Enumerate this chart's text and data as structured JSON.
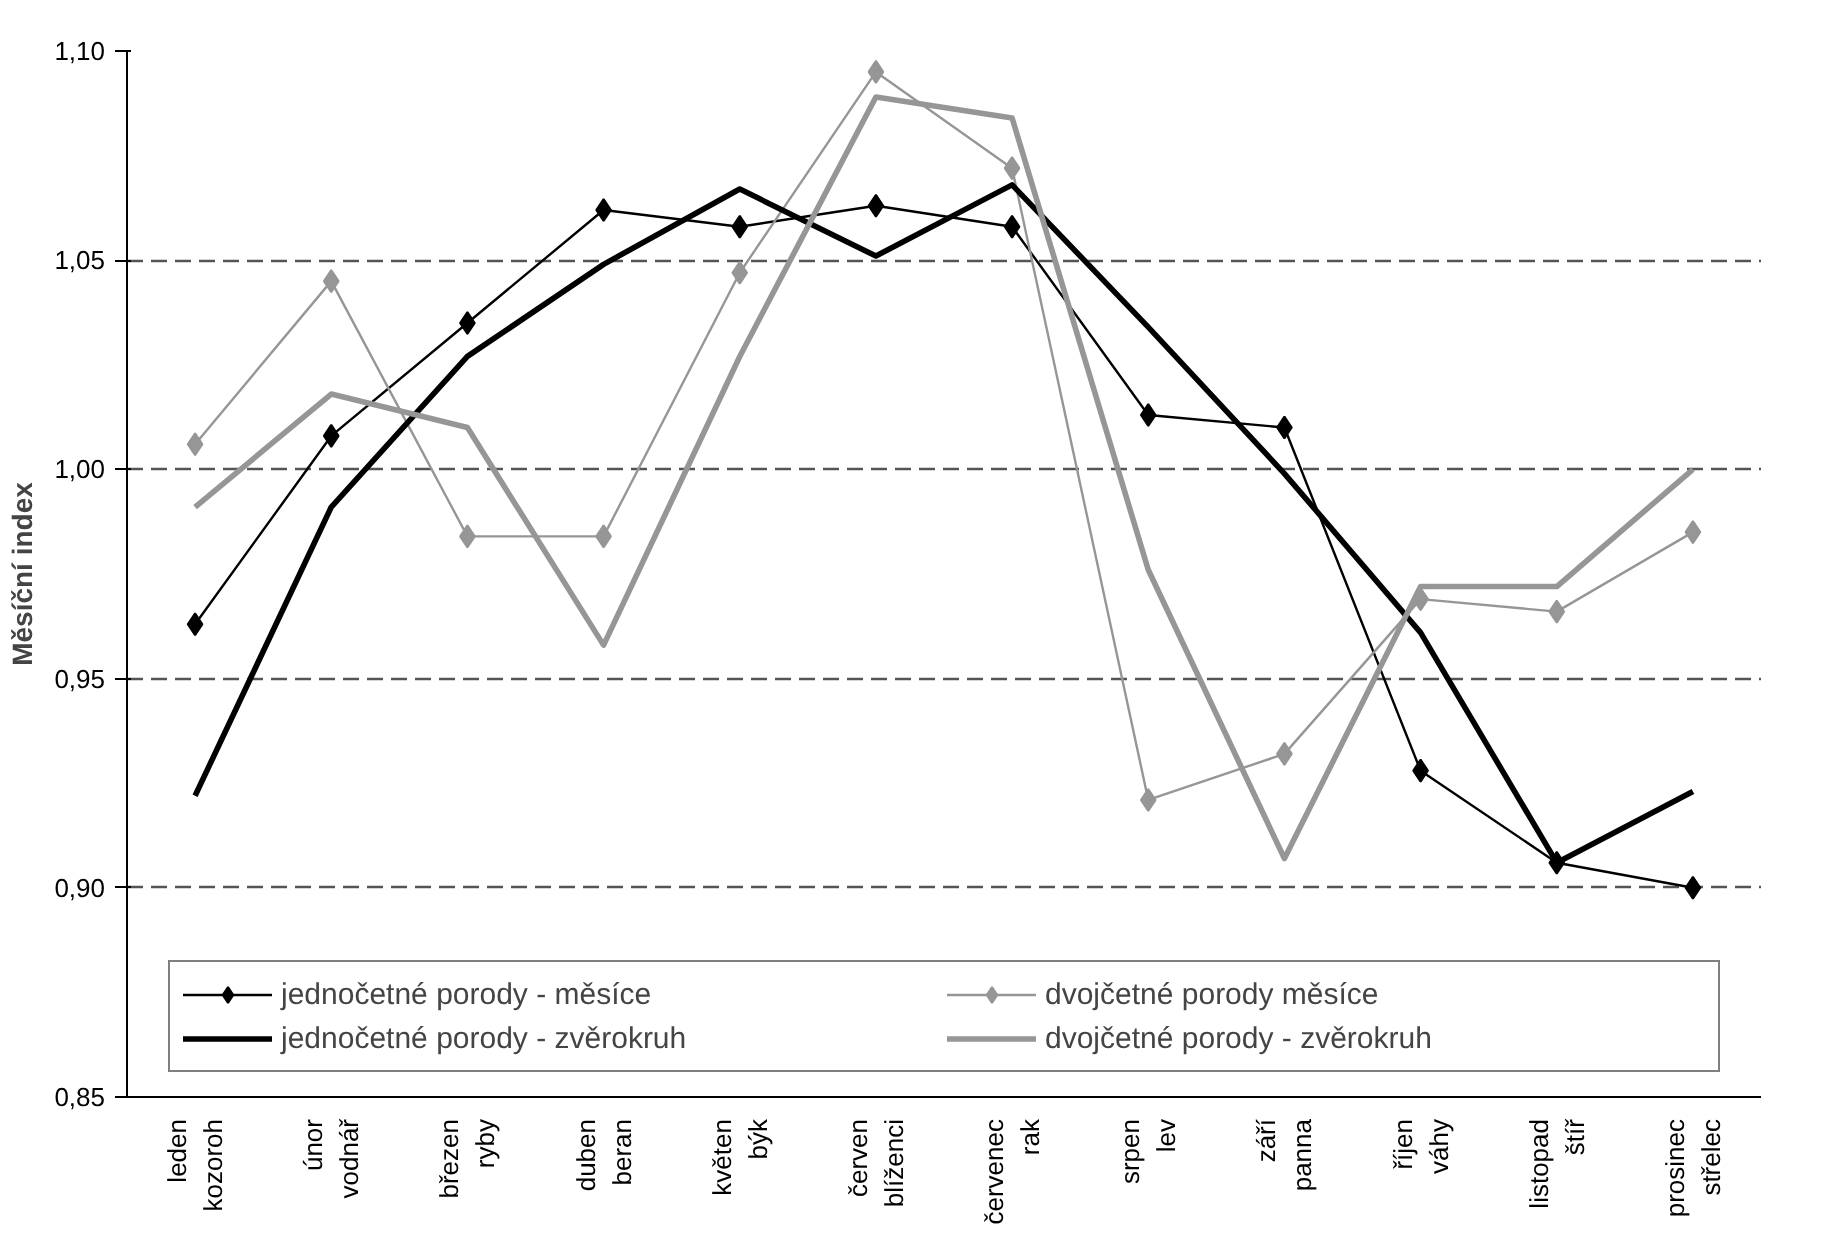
{
  "chart_data": {
    "type": "line",
    "ylabel": "Měsíční index",
    "categories": [
      "leden\nkozoroh",
      "únor\nvodnář",
      "březen\nryby",
      "duben\nberan",
      "květen\nbýk",
      "červen\nblíženci",
      "červenec\nrak",
      "srpen\nlev",
      "září\npanna",
      "říjen\nváhy",
      "listopad\nštíř",
      "prosinec\nstřelec"
    ],
    "series": [
      {
        "name": "jednočetné porody - měsíce",
        "color": "#000000",
        "marker": "diamond",
        "values": [
          0.963,
          1.008,
          1.035,
          1.062,
          1.058,
          1.063,
          1.058,
          1.013,
          1.01,
          0.928,
          0.906,
          0.9
        ]
      },
      {
        "name": "dvojčetné porody měsíce",
        "color": "#969696",
        "marker": "diamond",
        "values": [
          1.006,
          1.045,
          0.984,
          0.984,
          1.047,
          1.095,
          1.072,
          0.921,
          0.932,
          0.969,
          0.966,
          0.985
        ]
      },
      {
        "name": "jednočetné porody - zvěrokruh",
        "color": "#000000",
        "marker": "none",
        "values": [
          0.922,
          0.991,
          1.027,
          1.049,
          1.067,
          1.051,
          1.068,
          1.034,
          0.999,
          0.961,
          0.906,
          0.923
        ]
      },
      {
        "name": "dvojčetné porody - zvěrokruh",
        "color": "#969696",
        "marker": "none",
        "values": [
          0.991,
          1.018,
          1.01,
          0.958,
          1.027,
          1.089,
          1.084,
          0.976,
          0.907,
          0.972,
          0.972,
          1.0
        ]
      }
    ],
    "ylim": [
      0.85,
      1.1
    ],
    "yticks": [
      {
        "value": 0.85,
        "label": "0,85"
      },
      {
        "value": 0.9,
        "label": "0,90"
      },
      {
        "value": 0.95,
        "label": "0,95"
      },
      {
        "value": 1.0,
        "label": "1,00"
      },
      {
        "value": 1.05,
        "label": "1,05"
      },
      {
        "value": 1.1,
        "label": "1,10"
      }
    ],
    "grid": "y",
    "legend": "bottom",
    "line_style": "solid"
  }
}
